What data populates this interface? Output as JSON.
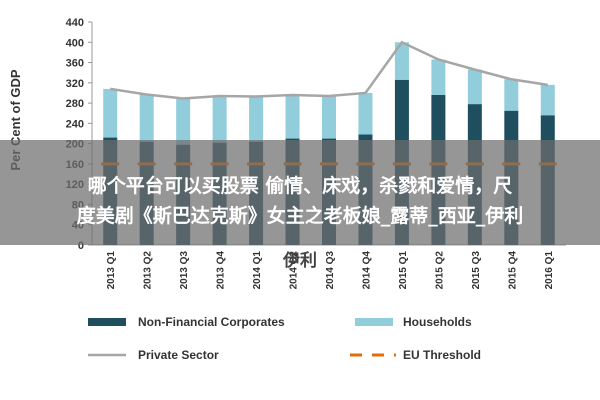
{
  "chart_data": {
    "type": "bar",
    "ylabel": "Per Cent of GDP",
    "ylim": [
      0,
      440
    ],
    "yticks": [
      0,
      40,
      80,
      120,
      160,
      200,
      240,
      280,
      320,
      360,
      400,
      440
    ],
    "categories": [
      "2013 Q1",
      "2013 Q2",
      "2013 Q3",
      "2013 Q4",
      "2014 Q1",
      "2014 Q2",
      "2014 Q3",
      "2014 Q4",
      "2015 Q1",
      "2015 Q2",
      "2015 Q3",
      "2015 Q4",
      "2016 Q1"
    ],
    "series": [
      {
        "name": "Non-Financial Corporates",
        "type": "bar",
        "color": "#1f4e5f",
        "values": [
          212,
          204,
          198,
          202,
          204,
          210,
          210,
          218,
          326,
          296,
          278,
          265,
          256
        ]
      },
      {
        "name": "Households",
        "type": "bar",
        "color": "#92cddc",
        "values": [
          96,
          93,
          91,
          92,
          89,
          86,
          84,
          82,
          74,
          70,
          68,
          62,
          60
        ]
      },
      {
        "name": "Private Sector",
        "type": "line",
        "color": "#a6a6a6",
        "values": [
          308,
          297,
          289,
          294,
          293,
          296,
          294,
          300,
          400,
          366,
          346,
          327,
          316
        ]
      },
      {
        "name": "EU Threshold",
        "type": "line-dashed",
        "color": "#e36c09",
        "values": [
          160,
          160,
          160,
          160,
          160,
          160,
          160,
          160,
          160,
          160,
          160,
          160,
          160
        ]
      }
    ],
    "legend_position": "bottom"
  },
  "overlay": {
    "line1": "哪个平台可以买股票 偷情、床戏，杀戮和爱情，尺",
    "line2": "度美剧《斯巴达克斯》女主之老板娘_露蒂_西亚_伊利",
    "line3": "伊利"
  },
  "colors": {
    "axis": "#999999",
    "text": "#333333"
  }
}
